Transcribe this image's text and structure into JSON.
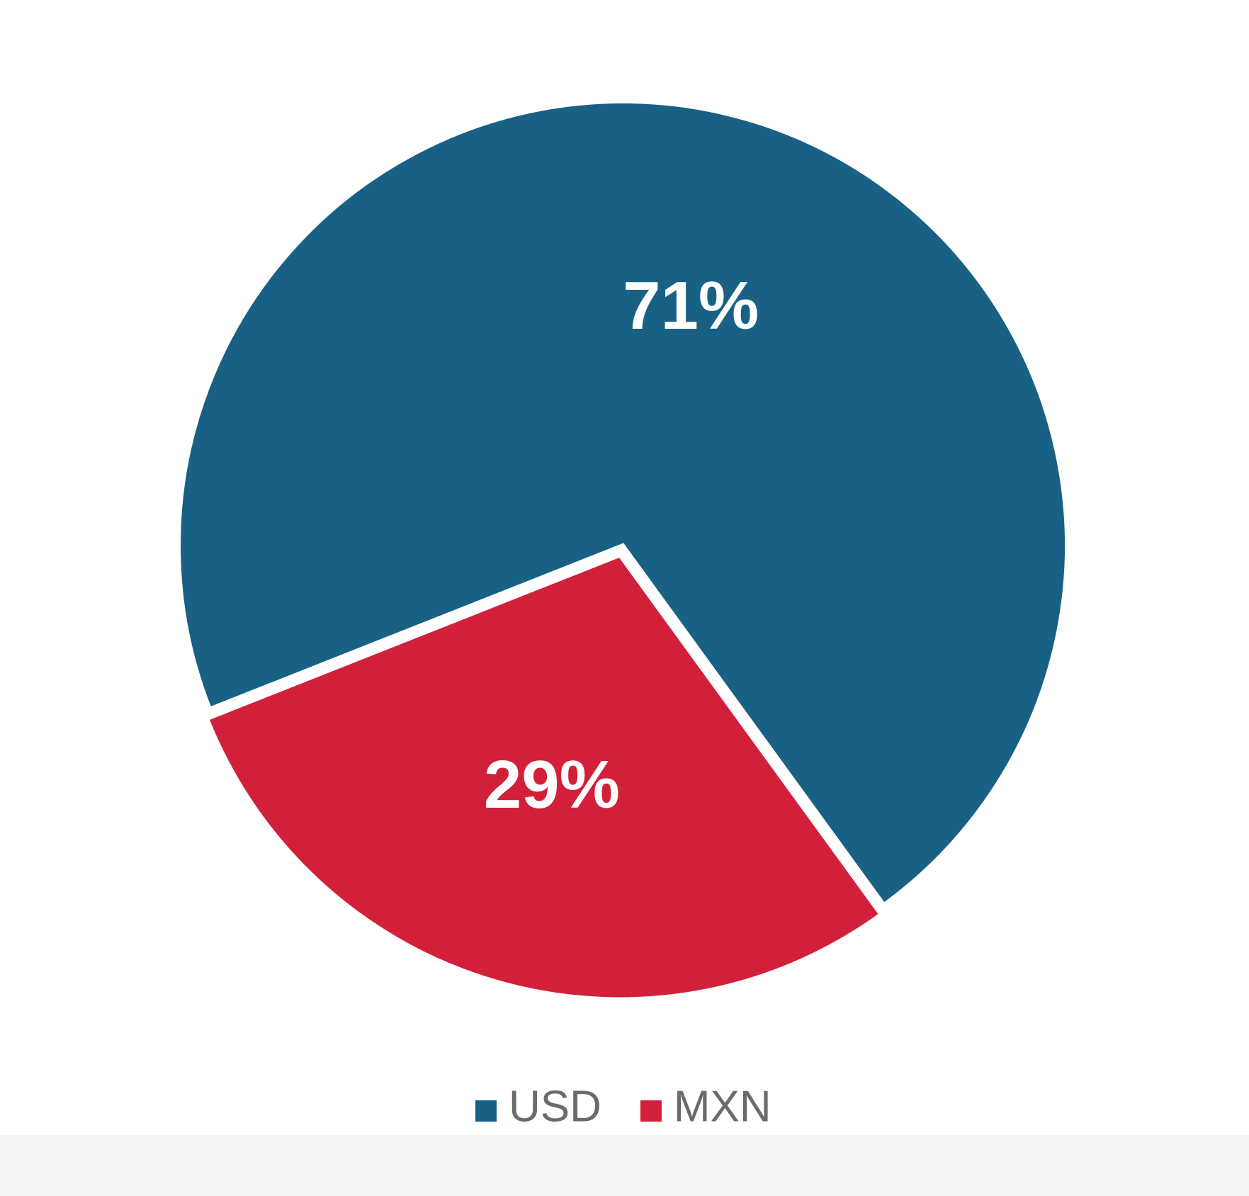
{
  "chart_data": {
    "type": "pie",
    "categories": [
      "USD",
      "MXN"
    ],
    "values": [
      71,
      29
    ],
    "value_labels": [
      "71%",
      "29%"
    ],
    "colors": [
      "#186184",
      "#d21f3a"
    ],
    "legend": "bottom"
  }
}
